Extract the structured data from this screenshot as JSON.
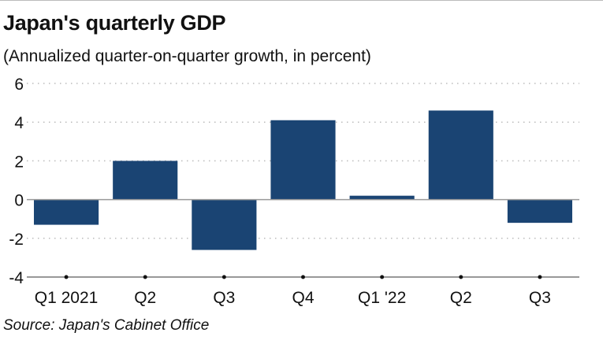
{
  "chart_data": {
    "type": "bar",
    "title": "Japan's quarterly GDP",
    "subtitle": "(Annualized quarter-on-quarter growth, in percent)",
    "source": "Source: Japan's Cabinet Office",
    "categories": [
      "Q1 2021",
      "Q2",
      "Q3",
      "Q4",
      "Q1 '22",
      "Q2",
      "Q3"
    ],
    "values": [
      -1.3,
      2.0,
      -2.6,
      4.1,
      0.2,
      4.6,
      -1.2
    ],
    "xlabel": "",
    "ylabel": "",
    "ylim": [
      -4,
      6
    ],
    "yticks": [
      6,
      4,
      2,
      0,
      -2,
      -4
    ],
    "grid": "horizontal dotted",
    "colors": {
      "bar": "#1a4473",
      "grid": "#bbbbbb",
      "axis": "#333333"
    }
  }
}
